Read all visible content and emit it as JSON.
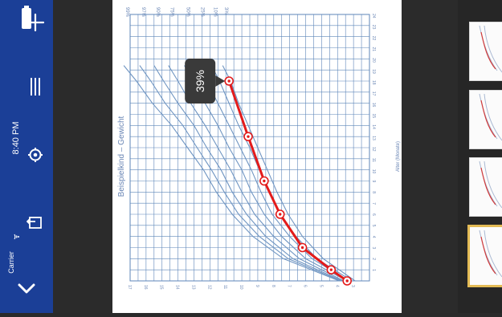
{
  "statusbar": {
    "carrier": "Carrier",
    "time": "8:40 PM"
  },
  "icons": {
    "close": "chevron-down-icon",
    "export": "export-icon",
    "settings": "gear-icon",
    "menu": "list-icon",
    "add": "plus-icon",
    "wifi": "wifi-icon",
    "battery": "battery-icon"
  },
  "chart": {
    "y_label": "Beispielkind – Gewicht",
    "x_label": "Alter (Monate)",
    "tooltip": "39%",
    "percentile_labels": [
      "99%",
      "97%",
      "90%",
      "75%",
      "50%",
      "25%",
      "10%",
      "3%"
    ],
    "line_color": "#e31b1b",
    "grid_color": "#5d86b9",
    "curve_color": "#6f95c2"
  },
  "chart_data": {
    "type": "line",
    "title": "",
    "xlabel": "Alter (Monate)",
    "ylabel": "Beispielkind – Gewicht",
    "series": [
      {
        "values": [
          {
            "x": 0,
            "y": 3.4
          },
          {
            "x": 1,
            "y": 4.4
          },
          {
            "x": 3,
            "y": 6.2
          },
          {
            "x": 6,
            "y": 7.6
          },
          {
            "x": 9,
            "y": 8.6
          },
          {
            "x": 13,
            "y": 9.6
          },
          {
            "x": 18,
            "y": 10.8
          }
        ]
      }
    ]
  },
  "thumbnails": {
    "count": 4,
    "selected_index": 3
  }
}
